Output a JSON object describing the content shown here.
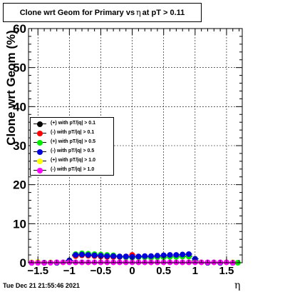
{
  "title": {
    "prefix": "Clone wrt Geom for Primary vs",
    "eta": "η",
    "suffix": "at pT > 0.11"
  },
  "timestamp": "Tue Dec 21 21:55:46 2021",
  "chart_data": {
    "type": "scatter",
    "xlabel": "η",
    "ylabel": "Clone wrt Geom (%)",
    "xlim": [
      -1.65,
      1.75
    ],
    "ylim": [
      0,
      60
    ],
    "xticks": [
      -1.5,
      -1,
      -0.5,
      0,
      0.5,
      1,
      1.5
    ],
    "xtick_labels": [
      "−1.5",
      "−1",
      "−0.5",
      "0",
      "0.5",
      "1",
      "1.5"
    ],
    "yticks": [
      0,
      10,
      20,
      30,
      40,
      50,
      60
    ],
    "ytick_labels": [
      "0",
      "10",
      "20",
      "30",
      "40",
      "50",
      "60"
    ],
    "grid": true,
    "legend_position": "middle-left",
    "series": [
      {
        "name": "(+) with pT/|q| > 0.1",
        "color": "#000000",
        "x": [
          -1.6,
          -1.4,
          -1.2,
          -1.0,
          -0.9,
          -0.8,
          -0.7,
          -0.6,
          -0.5,
          -0.4,
          -0.3,
          -0.2,
          -0.1,
          0.0,
          0.1,
          0.2,
          0.3,
          0.4,
          0.5,
          0.6,
          0.7,
          0.8,
          0.9,
          1.0,
          1.2,
          1.4,
          1.6
        ],
        "y": [
          0,
          0,
          0,
          0.5,
          1.8,
          2.0,
          1.9,
          1.8,
          1.7,
          1.6,
          1.5,
          1.5,
          1.4,
          1.6,
          1.5,
          1.5,
          1.4,
          1.5,
          1.5,
          1.6,
          1.6,
          1.7,
          1.7,
          0.5,
          0,
          0,
          0
        ]
      },
      {
        "name": "(-) with pT/|q| > 0.1",
        "color": "#ff0000",
        "x": [
          -1.6,
          -1.4,
          -1.2,
          -1.0,
          -0.9,
          -0.8,
          -0.7,
          -0.6,
          -0.5,
          -0.4,
          -0.3,
          -0.2,
          -0.1,
          0.0,
          0.1,
          0.2,
          0.3,
          0.4,
          0.5,
          0.6,
          0.7,
          0.8,
          0.9,
          1.0,
          1.2,
          1.4,
          1.6
        ],
        "y": [
          0,
          0,
          0,
          0.4,
          1.7,
          1.9,
          1.8,
          1.7,
          1.6,
          1.5,
          1.5,
          1.5,
          1.6,
          2.0,
          1.5,
          1.4,
          1.4,
          1.5,
          1.5,
          1.6,
          1.6,
          1.6,
          1.6,
          0.4,
          0,
          0,
          0
        ]
      },
      {
        "name": "(+) with pT/|q| > 0.5",
        "color": "#00ee00",
        "x": [
          -1.6,
          -1.4,
          -1.2,
          -1.0,
          -0.9,
          -0.8,
          -0.7,
          -0.6,
          -0.5,
          -0.4,
          -0.3,
          -0.2,
          -0.1,
          0.0,
          0.1,
          0.2,
          0.3,
          0.4,
          0.5,
          0.6,
          0.7,
          0.8,
          0.9,
          1.0,
          1.2,
          1.4,
          1.6,
          1.68
        ],
        "y": [
          0,
          0,
          0,
          0.6,
          2.2,
          2.4,
          2.3,
          2.2,
          2.1,
          2.0,
          1.9,
          1.6,
          1.4,
          1.3,
          1.4,
          1.4,
          1.3,
          1.4,
          1.4,
          1.5,
          1.5,
          1.6,
          1.6,
          0.5,
          0,
          0,
          0,
          0
        ]
      },
      {
        "name": "(-) with pT/|q| > 0.5",
        "color": "#0000dd",
        "x": [
          -1.6,
          -1.4,
          -1.2,
          -1.0,
          -0.9,
          -0.8,
          -0.7,
          -0.6,
          -0.5,
          -0.4,
          -0.3,
          -0.2,
          -0.1,
          0.0,
          0.1,
          0.2,
          0.3,
          0.4,
          0.5,
          0.6,
          0.7,
          0.8,
          0.9,
          1.0,
          1.2,
          1.4,
          1.6
        ],
        "y": [
          0,
          0,
          0,
          0.6,
          2.0,
          2.1,
          2.0,
          1.9,
          1.8,
          1.7,
          1.7,
          1.6,
          1.6,
          1.5,
          1.6,
          1.7,
          1.7,
          1.8,
          1.9,
          2.0,
          2.0,
          2.1,
          2.2,
          1.0,
          0,
          0,
          0
        ]
      },
      {
        "name": "(+) with pT/|q| > 1.0",
        "color": "#ffff00",
        "x": [
          -1.6,
          -1.5,
          -1.3,
          -1.1,
          -0.9,
          -0.7,
          -0.5,
          -0.3,
          -0.1,
          0.1,
          0.3,
          0.5,
          0.7,
          0.9,
          1.1,
          1.3,
          1.5,
          1.6
        ],
        "y": [
          0.1,
          0.2,
          0.1,
          0.1,
          0.1,
          0.1,
          0.1,
          0.1,
          0.1,
          0.1,
          0.1,
          0.1,
          0.1,
          0.1,
          0.1,
          0.1,
          0.1,
          0.1
        ]
      },
      {
        "name": "(-) with pT/|q| > 1.0",
        "color": "#ff00ff",
        "x": [
          -1.6,
          -1.5,
          -1.4,
          -1.3,
          -1.2,
          -1.1,
          -1.0,
          -0.9,
          -0.8,
          -0.7,
          -0.6,
          -0.5,
          -0.4,
          -0.3,
          -0.2,
          -0.1,
          0.0,
          0.1,
          0.2,
          0.3,
          0.4,
          0.5,
          0.6,
          0.7,
          0.8,
          0.9,
          1.0,
          1.1,
          1.2,
          1.3,
          1.4,
          1.5,
          1.6
        ],
        "y": [
          0,
          0,
          0,
          0,
          0.1,
          0.1,
          0.1,
          0.1,
          0.1,
          0.1,
          0.1,
          0.1,
          0.1,
          0.1,
          0.1,
          0.1,
          0.1,
          0.1,
          0.1,
          0.1,
          0.1,
          0.1,
          0.1,
          0.1,
          0.1,
          0.1,
          0.1,
          0.1,
          0.1,
          0.1,
          0.1,
          0.1,
          0
        ]
      }
    ]
  }
}
